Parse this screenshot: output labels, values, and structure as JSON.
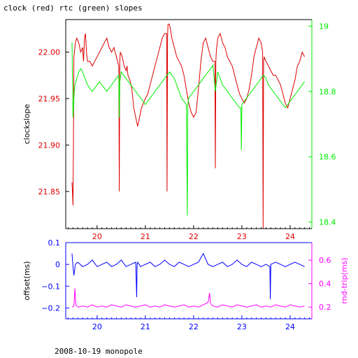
{
  "title": "clock (red) rtc (green) slopes",
  "footer": "2008-10-19 monopole",
  "colors": {
    "clock": "#dd0000",
    "rtc": "#00ee00",
    "offset": "#0000ff",
    "rndtrip": "#ff00ff",
    "axis": "#000000"
  },
  "chart_data": [
    {
      "type": "line",
      "ylabel": "clockslope",
      "y2label": "",
      "xlim": [
        19.35,
        24.45
      ],
      "ylim": [
        21.81,
        22.035
      ],
      "y2lim": [
        18.38,
        19.02
      ],
      "xticks": [
        20,
        21,
        22,
        23,
        24
      ],
      "yticks": [
        21.85,
        21.9,
        21.95,
        22
      ],
      "y2ticks": [
        18.4,
        18.6,
        18.8,
        19
      ],
      "series": [
        {
          "axis": "left",
          "x": [
            19.48,
            19.5,
            19.51,
            19.52,
            19.53,
            19.55,
            19.58,
            19.62,
            19.66,
            19.7,
            19.72,
            19.74,
            19.76,
            19.78,
            19.8,
            19.85,
            19.9,
            19.95,
            20.0,
            20.05,
            20.1,
            20.15,
            20.2,
            20.25,
            20.3,
            20.35,
            20.4,
            20.45,
            20.46,
            20.47,
            20.48,
            20.52,
            20.56,
            20.6,
            20.62,
            20.64,
            20.68,
            20.72,
            20.76,
            20.8,
            20.84,
            20.88,
            20.92,
            20.96,
            21.0,
            21.05,
            21.1,
            21.15,
            21.2,
            21.25,
            21.3,
            21.35,
            21.4,
            21.44,
            21.45,
            21.46,
            21.47,
            21.5,
            21.55,
            21.6,
            21.65,
            21.7,
            21.75,
            21.8,
            21.85,
            21.9,
            21.95,
            22.0,
            22.05,
            22.1,
            22.15,
            22.2,
            22.25,
            22.3,
            22.35,
            22.4,
            22.44,
            22.45,
            22.46,
            22.47,
            22.5,
            22.55,
            22.6,
            22.65,
            22.7,
            22.75,
            22.8,
            22.85,
            22.9,
            22.95,
            23.0,
            23.05,
            23.1,
            23.15,
            23.2,
            23.25,
            23.3,
            23.35,
            23.4,
            23.43,
            23.44,
            23.45,
            23.46,
            23.5,
            23.55,
            23.6,
            23.65,
            23.7,
            23.75,
            23.8,
            23.85,
            23.9,
            23.95,
            24.0,
            24.05,
            24.1,
            24.15,
            24.2,
            24.25,
            24.3
          ],
          "y": [
            21.86,
            21.835,
            21.9,
            21.995,
            22.0,
            22.01,
            22.015,
            22.01,
            22.0,
            22.005,
            21.99,
            22.015,
            22.02,
            22.0,
            21.99,
            21.99,
            21.985,
            21.99,
            21.995,
            22.0,
            22.005,
            22.01,
            22.015,
            22.005,
            22.0,
            22.005,
            21.995,
            21.985,
            21.85,
            21.99,
            22.0,
            21.995,
            21.985,
            21.98,
            21.985,
            21.975,
            21.97,
            21.96,
            21.94,
            21.93,
            21.92,
            21.93,
            21.94,
            21.945,
            21.95,
            21.955,
            21.965,
            21.975,
            21.985,
            21.995,
            22.005,
            22.015,
            22.02,
            22.02,
            21.85,
            22.015,
            22.03,
            22.03,
            22.015,
            22.005,
            21.995,
            21.99,
            21.985,
            21.975,
            21.96,
            21.945,
            21.935,
            21.93,
            21.935,
            21.96,
            21.99,
            22.01,
            22.015,
            22.005,
            21.995,
            21.99,
            21.99,
            21.875,
            21.99,
            22.0,
            22.015,
            22.02,
            22.01,
            22.005,
            21.995,
            21.99,
            21.985,
            21.975,
            21.965,
            21.955,
            21.95,
            21.945,
            21.95,
            21.96,
            21.975,
            21.995,
            22.005,
            22.015,
            22.01,
            22.0,
            21.81,
            21.99,
            21.995,
            21.99,
            21.985,
            21.98,
            21.975,
            21.975,
            21.97,
            21.965,
            21.955,
            21.945,
            21.94,
            21.95,
            21.96,
            21.97,
            21.985,
            21.99,
            22.0,
            21.995
          ]
        },
        {
          "axis": "right",
          "x": [
            19.48,
            19.5,
            19.52,
            19.54,
            19.58,
            19.62,
            19.66,
            19.7,
            19.75,
            19.8,
            19.85,
            19.9,
            19.95,
            20.0,
            20.05,
            20.1,
            20.15,
            20.2,
            20.25,
            20.3,
            20.35,
            20.4,
            20.45,
            20.46,
            20.47,
            20.5,
            20.55,
            20.6,
            20.65,
            20.7,
            20.75,
            20.8,
            20.85,
            20.9,
            20.95,
            21.0,
            21.05,
            21.1,
            21.15,
            21.2,
            21.25,
            21.3,
            21.35,
            21.4,
            21.45,
            21.5,
            21.55,
            21.6,
            21.65,
            21.7,
            21.75,
            21.8,
            21.85,
            21.87,
            21.88,
            21.89,
            21.9,
            21.95,
            22.0,
            22.05,
            22.1,
            22.15,
            22.2,
            22.25,
            22.3,
            22.35,
            22.4,
            22.45,
            22.5,
            22.55,
            22.6,
            22.65,
            22.7,
            22.75,
            22.8,
            22.85,
            22.9,
            22.95,
            22.98,
            22.99,
            23.0,
            23.05,
            23.1,
            23.15,
            23.2,
            23.25,
            23.3,
            23.35,
            23.4,
            23.45,
            23.5,
            23.55,
            23.6,
            23.65,
            23.7,
            23.75,
            23.8,
            23.85,
            23.9,
            23.95,
            24.0,
            24.05,
            24.1,
            24.15,
            24.2,
            24.25,
            24.3
          ],
          "y": [
            18.95,
            18.72,
            18.78,
            18.82,
            18.84,
            18.86,
            18.87,
            18.86,
            18.84,
            18.82,
            18.81,
            18.8,
            18.81,
            18.82,
            18.83,
            18.82,
            18.81,
            18.8,
            18.81,
            18.82,
            18.83,
            18.84,
            18.85,
            18.72,
            18.83,
            18.86,
            18.85,
            18.84,
            18.83,
            18.82,
            18.81,
            18.8,
            18.79,
            18.78,
            18.77,
            18.76,
            18.77,
            18.78,
            18.79,
            18.8,
            18.81,
            18.82,
            18.83,
            18.84,
            18.85,
            18.86,
            18.85,
            18.84,
            18.82,
            18.8,
            18.78,
            18.77,
            18.76,
            18.42,
            18.76,
            18.77,
            18.78,
            18.79,
            18.8,
            18.81,
            18.82,
            18.83,
            18.84,
            18.85,
            18.86,
            18.87,
            18.88,
            18.8,
            18.86,
            18.84,
            18.82,
            18.81,
            18.8,
            18.79,
            18.78,
            18.77,
            18.76,
            18.75,
            18.75,
            18.62,
            18.76,
            18.77,
            18.78,
            18.79,
            18.8,
            18.81,
            18.82,
            18.83,
            18.84,
            18.85,
            18.84,
            18.82,
            18.81,
            18.8,
            18.79,
            18.78,
            18.77,
            18.76,
            18.75,
            18.76,
            18.77,
            18.78,
            18.79,
            18.8,
            18.81,
            18.82,
            18.83
          ]
        }
      ]
    },
    {
      "type": "line",
      "ylabel": "offset(ms)",
      "y2label": "rnd-trip(ms)",
      "xlim": [
        19.35,
        24.45
      ],
      "ylim": [
        -0.25,
        0.1
      ],
      "y2lim": [
        0.1,
        0.75
      ],
      "xticks": [
        20,
        21,
        22,
        23,
        24
      ],
      "yticks": [
        0.1,
        0,
        -0.1,
        -0.2
      ],
      "ytick_labels": [
        "0.1",
        "0",
        "−0.1",
        "−0.2"
      ],
      "y2ticks": [
        0.2,
        0.4,
        0.6
      ],
      "series": [
        {
          "axis": "left",
          "x": [
            19.48,
            19.5,
            19.52,
            19.55,
            19.6,
            19.7,
            19.8,
            19.9,
            20.0,
            20.1,
            20.2,
            20.3,
            20.4,
            20.5,
            20.6,
            20.7,
            20.8,
            20.82,
            20.83,
            20.84,
            20.9,
            21.0,
            21.1,
            21.2,
            21.3,
            21.4,
            21.5,
            21.6,
            21.7,
            21.8,
            21.9,
            22.0,
            22.1,
            22.2,
            22.3,
            22.4,
            22.5,
            22.6,
            22.7,
            22.8,
            22.9,
            23.0,
            23.1,
            23.2,
            23.3,
            23.4,
            23.5,
            23.58,
            23.59,
            23.6,
            23.7,
            23.8,
            23.9,
            24.0,
            24.1,
            24.2,
            24.3
          ],
          "y": [
            0.05,
            -0.01,
            -0.05,
            0.0,
            0.01,
            -0.01,
            0.0,
            0.02,
            -0.01,
            0.0,
            0.01,
            -0.01,
            0.0,
            0.02,
            -0.01,
            0.0,
            0.01,
            -0.15,
            0.0,
            0.01,
            -0.01,
            0.0,
            0.01,
            -0.01,
            0.0,
            0.02,
            0.0,
            -0.01,
            0.01,
            0.0,
            -0.01,
            0.0,
            0.01,
            0.05,
            0.0,
            -0.01,
            0.0,
            0.01,
            -0.01,
            0.0,
            0.02,
            0.0,
            -0.01,
            0.01,
            0.0,
            -0.01,
            0.0,
            -0.01,
            -0.16,
            0.0,
            0.01,
            0.0,
            -0.01,
            0.0,
            0.01,
            0.0,
            -0.01
          ]
        },
        {
          "axis": "right",
          "x": [
            19.48,
            19.52,
            19.54,
            19.56,
            19.6,
            19.7,
            19.8,
            19.9,
            20.0,
            20.1,
            20.2,
            20.3,
            20.4,
            20.5,
            20.6,
            20.7,
            20.8,
            20.9,
            21.0,
            21.1,
            21.2,
            21.3,
            21.4,
            21.5,
            21.6,
            21.7,
            21.8,
            21.9,
            22.0,
            22.1,
            22.2,
            22.3,
            22.33,
            22.35,
            22.4,
            22.5,
            22.6,
            22.7,
            22.8,
            22.9,
            23.0,
            23.1,
            23.2,
            23.3,
            23.4,
            23.5,
            23.6,
            23.7,
            23.8,
            23.9,
            24.0,
            24.1,
            24.2,
            24.3
          ],
          "y": [
            0.2,
            0.21,
            0.36,
            0.22,
            0.2,
            0.21,
            0.2,
            0.22,
            0.2,
            0.21,
            0.2,
            0.22,
            0.21,
            0.2,
            0.22,
            0.21,
            0.2,
            0.21,
            0.22,
            0.2,
            0.21,
            0.2,
            0.22,
            0.21,
            0.2,
            0.21,
            0.22,
            0.2,
            0.21,
            0.2,
            0.22,
            0.24,
            0.32,
            0.23,
            0.21,
            0.2,
            0.22,
            0.21,
            0.2,
            0.22,
            0.21,
            0.2,
            0.21,
            0.22,
            0.2,
            0.21,
            0.2,
            0.22,
            0.21,
            0.2,
            0.22,
            0.21,
            0.2,
            0.21
          ]
        }
      ]
    }
  ]
}
